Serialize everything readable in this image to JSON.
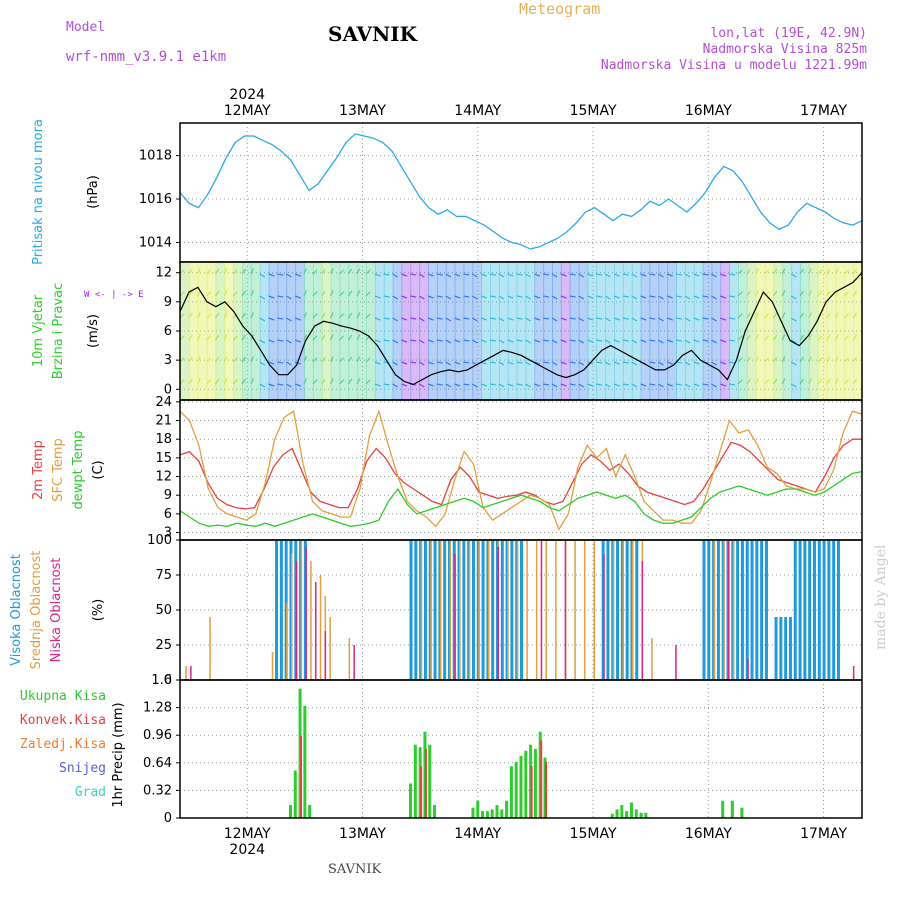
{
  "header": {
    "model_label": "Model",
    "model_name": "wrf-nmm_v3.9.1 e1km",
    "title": "SAVNIK",
    "meteogram": "Meteogram",
    "lonlat": "lon,lat (19E, 42.9N)",
    "elevation": "Nadmorska Visina 825m",
    "model_elevation": "Nadmorska Visina u modelu 1221.99m"
  },
  "footer": "SAVNIK",
  "stamp": "made by Angel",
  "colors": {
    "pressure": "#2ea8e0",
    "temp2m": "#e84040",
    "sfc": "#e0a040",
    "dewpt": "#2ecc2e",
    "visoka": "#1f9bdc",
    "srednja": "#e0a040",
    "niska": "#dd2288",
    "ukupna": "#2ecc2e",
    "konvek": "#e84040",
    "zaledj": "#f07c30",
    "snijeg": "#5b5bdf",
    "grad": "#3ed0c0",
    "wind_violet": "#a020f0",
    "wind_green": "#00c800"
  },
  "chart_data": {
    "type": "line",
    "x": {
      "year_top": "2024",
      "year_bottom": "2024",
      "day_labels": [
        "12MAY",
        "13MAY",
        "14MAY",
        "15MAY",
        "16MAY",
        "17MAY"
      ],
      "first_day_offset_hours": 14,
      "total_hours": 142
    },
    "panels": [
      {
        "id": "pressure",
        "ylabels": [
          "Pritisak na nivou mora",
          "(hPa)"
        ],
        "yticks": [
          "1014",
          "1016",
          "1018"
        ],
        "ylim": [
          1013.1,
          1019.5
        ],
        "series": [
          {
            "name": "Pritisak na nivou mora",
            "values": [
              1016.3,
              1015.8,
              1015.6,
              1016.2,
              1017.0,
              1017.9,
              1018.6,
              1018.9,
              1018.9,
              1018.7,
              1018.5,
              1018.2,
              1017.8,
              1017.1,
              1016.4,
              1016.7,
              1017.3,
              1017.9,
              1018.6,
              1019.0,
              1018.9,
              1018.8,
              1018.6,
              1018.2,
              1017.5,
              1016.8,
              1016.1,
              1015.6,
              1015.3,
              1015.5,
              1015.2,
              1015.2,
              1015.0,
              1014.8,
              1014.5,
              1014.2,
              1014.0,
              1013.9,
              1013.7,
              1013.8,
              1014.0,
              1014.2,
              1014.5,
              1014.9,
              1015.4,
              1015.6,
              1015.3,
              1015.0,
              1015.3,
              1015.2,
              1015.5,
              1015.9,
              1015.7,
              1016.0,
              1015.7,
              1015.4,
              1015.8,
              1016.3,
              1017.0,
              1017.5,
              1017.3,
              1016.8,
              1016.1,
              1015.4,
              1014.9,
              1014.6,
              1014.8,
              1015.4,
              1015.8,
              1015.6,
              1015.4,
              1015.1,
              1014.9,
              1014.8,
              1015.0
            ],
            "color": "#2ea8e0"
          }
        ]
      },
      {
        "id": "wind",
        "ylabels": [
          "10m Vjetar",
          "Brzina i Pravac",
          "(m/s)"
        ],
        "yticks": [
          "0",
          "3",
          "6",
          "9",
          "12"
        ],
        "ylim": [
          -1.1,
          13.1
        ],
        "compass": "W <- | -> E",
        "series": [
          {
            "name": "10m Vjetar",
            "values": [
              8.0,
              10.0,
              10.5,
              9.0,
              8.5,
              9.0,
              8.0,
              6.5,
              5.5,
              4.0,
              2.5,
              1.5,
              1.5,
              2.5,
              5.0,
              6.5,
              7.0,
              6.8,
              6.5,
              6.3,
              6.0,
              5.5,
              4.5,
              3.0,
              1.5,
              0.8,
              0.5,
              1.0,
              1.5,
              1.8,
              2.0,
              1.8,
              2.0,
              2.5,
              3.0,
              3.5,
              4.0,
              3.8,
              3.5,
              3.0,
              2.5,
              2.0,
              1.5,
              1.2,
              1.5,
              2.0,
              3.0,
              4.0,
              4.5,
              4.0,
              3.5,
              3.0,
              2.5,
              2.0,
              2.0,
              2.5,
              3.5,
              4.0,
              3.0,
              2.5,
              2.0,
              1.0,
              3.0,
              6.0,
              8.0,
              10.0,
              9.0,
              7.0,
              5.0,
              4.5,
              5.5,
              7.0,
              9.0,
              10.0,
              10.5,
              11.0,
              12.0
            ],
            "color": "#000000"
          }
        ]
      },
      {
        "id": "temp",
        "ylabels": [
          "2m Temp",
          "SFC Temp",
          "dewpt Temp",
          "(C)"
        ],
        "yticks": [
          "3",
          "6",
          "9",
          "12",
          "15",
          "18",
          "21",
          "24"
        ],
        "ylim": [
          1.8,
          24.3
        ],
        "series": [
          {
            "name": "2m Temp",
            "color": "#e84040",
            "values": [
              15.5,
              16.0,
              14.5,
              11.0,
              8.5,
              7.5,
              7.0,
              6.8,
              7.0,
              10.0,
              13.5,
              15.5,
              16.5,
              13.0,
              9.5,
              8.0,
              7.5,
              7.0,
              7.0,
              10.0,
              14.5,
              16.5,
              15.0,
              12.5,
              11.0,
              10.0,
              9.0,
              8.0,
              7.5,
              11.5,
              13.5,
              12.0,
              9.5,
              9.0,
              8.5,
              8.8,
              9.0,
              9.5,
              9.0,
              8.0,
              7.5,
              8.0,
              11.0,
              14.0,
              15.5,
              14.5,
              13.0,
              14.0,
              12.5,
              10.5,
              9.5,
              9.0,
              8.5,
              8.0,
              7.5,
              8.0,
              10.0,
              12.5,
              15.0,
              17.5,
              17.0,
              16.0,
              14.5,
              13.0,
              11.5,
              11.0,
              10.5,
              10.0,
              9.5,
              12.0,
              15.0,
              17.0,
              18.0,
              18.0
            ]
          },
          {
            "name": "SFC Temp",
            "color": "#e0a040",
            "values": [
              22.5,
              21.0,
              17.0,
              10.0,
              7.0,
              6.0,
              5.5,
              5.0,
              6.0,
              11.0,
              18.0,
              21.5,
              22.5,
              14.0,
              8.0,
              6.5,
              6.0,
              5.5,
              5.5,
              10.0,
              18.5,
              22.5,
              17.0,
              12.0,
              8.0,
              6.5,
              5.5,
              4.0,
              6.0,
              11.5,
              16.0,
              14.0,
              7.0,
              5.0,
              6.0,
              7.0,
              8.0,
              9.0,
              8.5,
              7.5,
              3.5,
              6.0,
              13.5,
              17.0,
              15.0,
              16.5,
              12.0,
              15.5,
              12.0,
              8.0,
              6.5,
              5.0,
              5.0,
              4.5,
              4.5,
              6.5,
              11.0,
              16.0,
              21.0,
              19.0,
              19.5,
              17.0,
              13.5,
              12.5,
              10.5,
              10.0,
              10.0,
              9.5,
              10.0,
              13.0,
              19.0,
              22.5,
              22.0
            ]
          },
          {
            "name": "dewpt Temp",
            "color": "#2ecc2e",
            "values": [
              6.5,
              5.5,
              4.5,
              4.0,
              4.2,
              4.0,
              4.5,
              4.2,
              4.0,
              4.5,
              4.0,
              4.5,
              5.0,
              5.5,
              6.0,
              5.5,
              5.0,
              4.5,
              4.0,
              4.2,
              4.5,
              5.0,
              8.0,
              10.0,
              7.5,
              6.0,
              6.5,
              7.0,
              7.5,
              8.0,
              8.5,
              8.0,
              7.0,
              7.5,
              8.0,
              8.5,
              9.0,
              8.5,
              8.0,
              7.0,
              6.5,
              7.5,
              8.5,
              9.0,
              9.5,
              9.0,
              8.5,
              9.0,
              8.0,
              6.0,
              5.0,
              4.5,
              4.5,
              5.0,
              5.5,
              7.0,
              8.5,
              9.5,
              10.0,
              10.5,
              10.0,
              9.5,
              9.0,
              9.5,
              10.0,
              10.0,
              9.5,
              9.0,
              9.5,
              10.5,
              11.5,
              12.5,
              12.8
            ]
          }
        ]
      },
      {
        "id": "cloud",
        "ylabels": [
          "Visoka Oblacnost",
          "Srednja Oblacnost",
          "Niska Oblacnost",
          "(%)"
        ],
        "yticks": [
          "0",
          "25",
          "50",
          "75",
          "100"
        ],
        "ylim": [
          0,
          100
        ],
        "type": "bar",
        "series": [
          {
            "name": "Visoka Oblacnost",
            "color": "#1f9bdc",
            "runs": [
              [
                20,
                26,
                100
              ],
              [
                48,
                71,
                100
              ],
              [
                88,
                95,
                100
              ],
              [
                109,
                122,
                100
              ],
              [
                124,
                127,
                45
              ],
              [
                128,
                137,
                100
              ]
            ]
          },
          {
            "name": "Srednja Oblacnost",
            "color": "#e0a040",
            "bars": [
              [
                1,
                10
              ],
              [
                6,
                45
              ],
              [
                19,
                20
              ],
              [
                22,
                55
              ],
              [
                23,
                90
              ],
              [
                25,
                100
              ],
              [
                27,
                85
              ],
              [
                29,
                75
              ],
              [
                30,
                60
              ],
              [
                31,
                45
              ],
              [
                35,
                30
              ],
              [
                50,
                100
              ],
              [
                52,
                100
              ],
              [
                54,
                100
              ],
              [
                56,
                100
              ],
              [
                58,
                100
              ],
              [
                60,
                100
              ],
              [
                62,
                100
              ],
              [
                64,
                100
              ],
              [
                66,
                100
              ],
              [
                68,
                100
              ],
              [
                70,
                100
              ],
              [
                72,
                100
              ],
              [
                74,
                100
              ],
              [
                76,
                100
              ],
              [
                78,
                100
              ],
              [
                80,
                100
              ],
              [
                82,
                100
              ],
              [
                84,
                100
              ],
              [
                86,
                100
              ],
              [
                90,
                100
              ],
              [
                92,
                100
              ],
              [
                94,
                100
              ],
              [
                96,
                100
              ],
              [
                98,
                30
              ],
              [
                111,
                100
              ],
              [
                113,
                100
              ],
              [
                115,
                100
              ]
            ]
          },
          {
            "name": "Niska Oblacnost",
            "color": "#dd2288",
            "bars": [
              [
                2,
                10
              ],
              [
                24,
                85
              ],
              [
                26,
                95
              ],
              [
                28,
                70
              ],
              [
                30,
                35
              ],
              [
                36,
                25
              ],
              [
                57,
                90
              ],
              [
                66,
                95
              ],
              [
                75,
                100
              ],
              [
                80,
                100
              ],
              [
                88,
                90
              ],
              [
                96,
                85
              ],
              [
                103,
                25
              ],
              [
                114,
                100
              ],
              [
                118,
                15
              ],
              [
                140,
                10
              ]
            ]
          }
        ]
      },
      {
        "id": "precip",
        "ylabels": [
          "1hr Precip (mm)"
        ],
        "yticks": [
          "0",
          "0.32",
          "0.64",
          "0.96",
          "1.28",
          "1.6"
        ],
        "ylim": [
          0,
          1.6
        ],
        "type": "bar",
        "legend": [
          "Ukupna Kisa",
          "Konvek.Kisa",
          "Zaledj.Kisa",
          "Snijeg",
          "Grad"
        ],
        "series": [
          {
            "name": "Ukupna Kisa",
            "color": "#2ecc2e",
            "bars": [
              [
                23,
                0.15
              ],
              [
                24,
                0.55
              ],
              [
                25,
                1.5
              ],
              [
                26,
                1.3
              ],
              [
                27,
                0.15
              ],
              [
                48,
                0.4
              ],
              [
                49,
                0.85
              ],
              [
                50,
                0.82
              ],
              [
                51,
                1.0
              ],
              [
                52,
                0.85
              ],
              [
                53,
                0.15
              ],
              [
                61,
                0.12
              ],
              [
                62,
                0.2
              ],
              [
                63,
                0.08
              ],
              [
                64,
                0.08
              ],
              [
                65,
                0.1
              ],
              [
                66,
                0.15
              ],
              [
                67,
                0.1
              ],
              [
                68,
                0.2
              ],
              [
                69,
                0.6
              ],
              [
                70,
                0.65
              ],
              [
                71,
                0.72
              ],
              [
                72,
                0.78
              ],
              [
                73,
                0.85
              ],
              [
                74,
                0.8
              ],
              [
                75,
                1.0
              ],
              [
                76,
                0.7
              ],
              [
                90,
                0.05
              ],
              [
                91,
                0.1
              ],
              [
                92,
                0.15
              ],
              [
                93,
                0.08
              ],
              [
                94,
                0.18
              ],
              [
                95,
                0.1
              ],
              [
                96,
                0.06
              ],
              [
                97,
                0.06
              ],
              [
                113,
                0.2
              ],
              [
                115,
                0.2
              ],
              [
                117,
                0.12
              ]
            ]
          },
          {
            "name": "Konvek.Kisa",
            "color": "#e84040",
            "bars": [
              [
                25,
                0.95
              ],
              [
                50,
                0.6
              ],
              [
                51,
                0.8
              ],
              [
                73,
                0.6
              ],
              [
                75,
                0.9
              ],
              [
                76,
                0.65
              ]
            ]
          }
        ]
      }
    ]
  }
}
